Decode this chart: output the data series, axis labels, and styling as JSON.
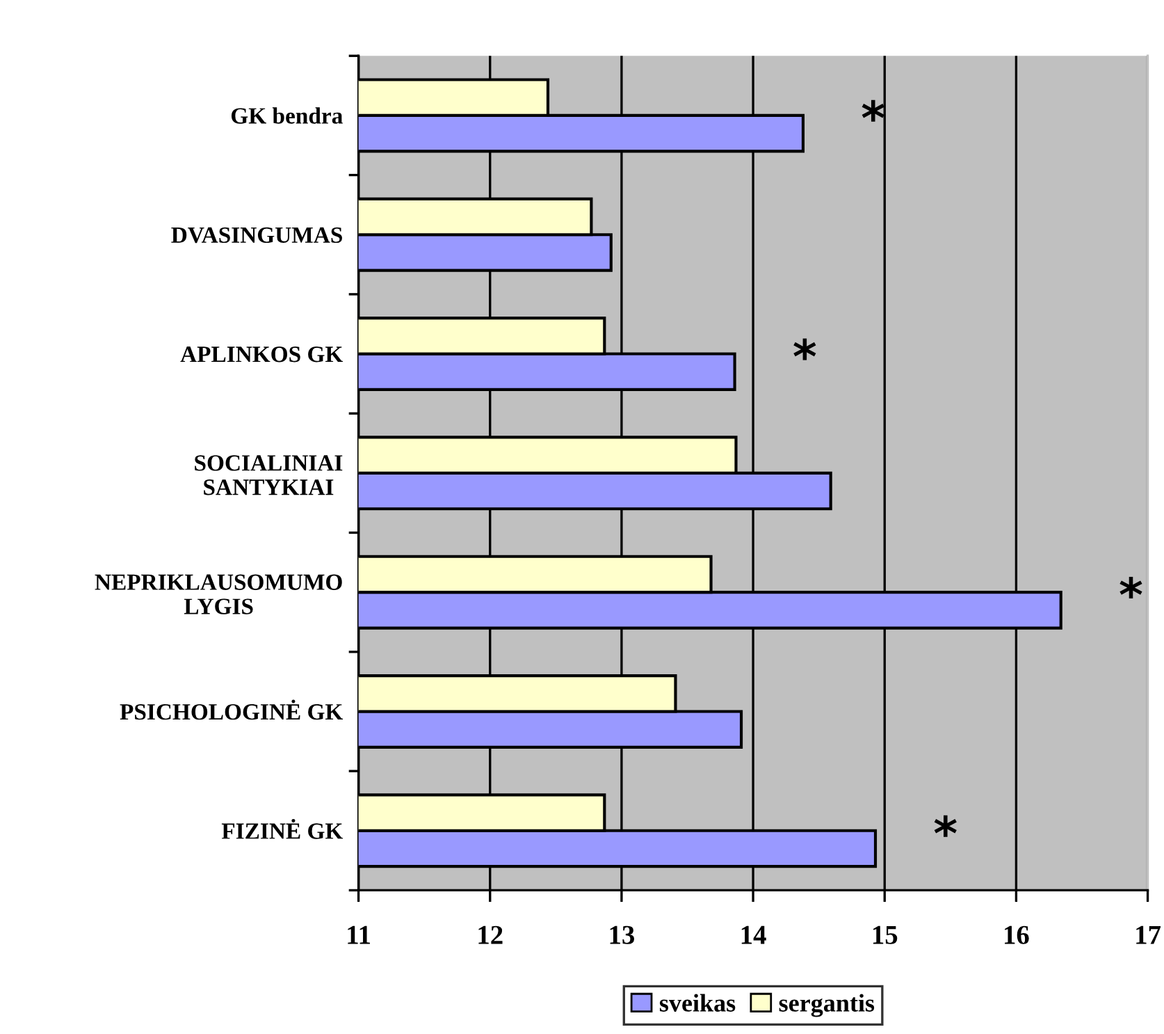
{
  "chart_data": {
    "type": "bar",
    "orientation": "horizontal",
    "categories": [
      "GK bendra",
      "DVASINGUMAS",
      "APLINKOS GK",
      "SOCIALINIAI\nSANTYKIAI",
      "NEPRIKLAUSOMUMO\nLYGIS",
      "PSICHOLOGINĖ GK",
      "FIZINĖ GK"
    ],
    "series": [
      {
        "name": "sveikas",
        "color": "#9999ff",
        "values": [
          14.38,
          12.92,
          13.86,
          14.59,
          16.34,
          13.91,
          14.93
        ]
      },
      {
        "name": "sergantis",
        "color": "#ffffcc",
        "values": [
          12.44,
          12.77,
          12.87,
          13.87,
          13.68,
          13.41,
          12.87
        ]
      }
    ],
    "xlim": [
      11,
      17
    ],
    "xticks": [
      11,
      12,
      13,
      14,
      15,
      16,
      17
    ],
    "grid": "x",
    "legend": "bottom",
    "annotations": [
      {
        "text": "*",
        "x": 14.38,
        "y": "GK bendra"
      },
      {
        "text": "*",
        "x": 13.86,
        "y": "APLINKOS GK"
      },
      {
        "text": "*",
        "x": 16.34,
        "y": "NEPRIKLAUSOMUMO\nLYGIS"
      },
      {
        "text": "*",
        "x": 14.93,
        "y": "FIZINĖ GK"
      }
    ]
  }
}
